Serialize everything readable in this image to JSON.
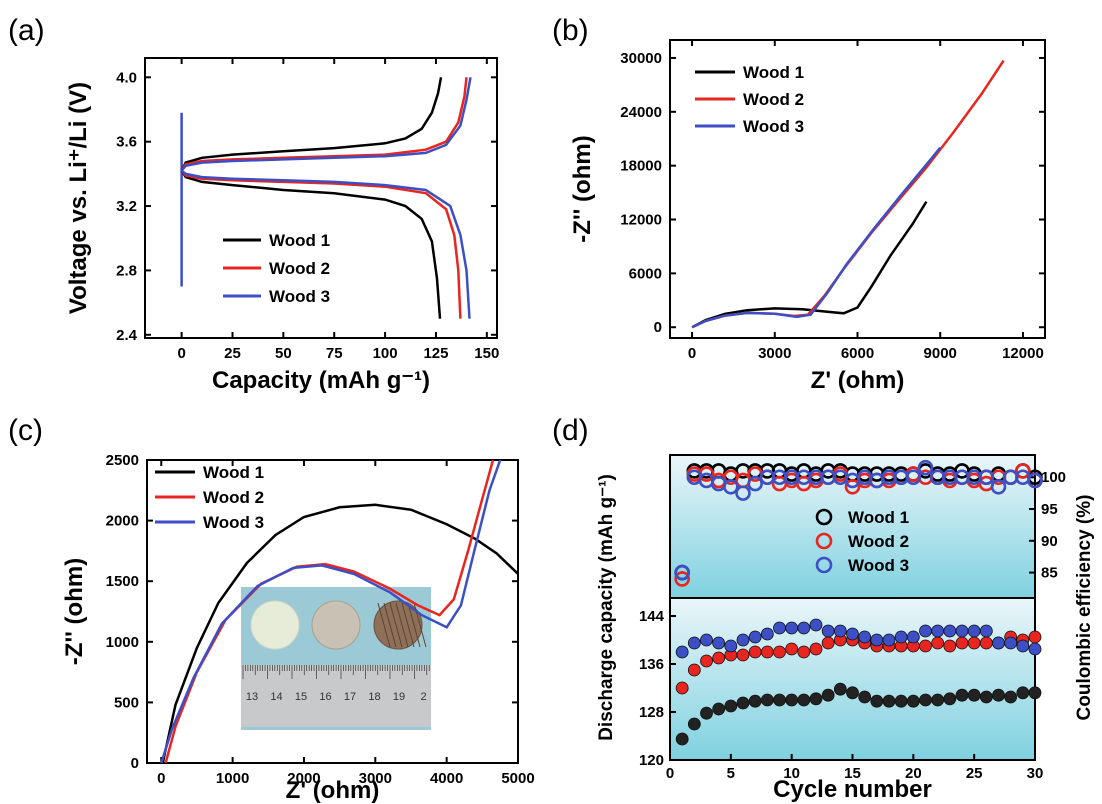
{
  "colors": {
    "wood1": "#000000",
    "wood2": "#e8251f",
    "wood3": "#3d4fc4",
    "panel_bg": "#7fd1e0"
  },
  "chart_data": [
    {
      "id": "a",
      "panel_label": "(a)",
      "type": "line",
      "xlabel": "Capacity (mAh g⁻¹)",
      "ylabel": "Voltage vs. Li⁺/Li (V)",
      "xlim": [
        -18,
        155
      ],
      "ylim": [
        2.38,
        4.12
      ],
      "xticks": [
        0,
        25,
        50,
        75,
        100,
        125,
        150
      ],
      "yticks": [
        2.4,
        2.8,
        3.2,
        3.6,
        4.0
      ],
      "ytick_labels": [
        "2.4",
        "2.8",
        "3.2",
        "3.6",
        "4.0"
      ],
      "legend": [
        "Wood 1",
        "Wood 2",
        "Wood 3"
      ],
      "legend_position": "bottom-left",
      "series": [
        {
          "name": "Wood 1",
          "charge": [
            [
              0,
              3.42
            ],
            [
              2,
              3.47
            ],
            [
              10,
              3.5
            ],
            [
              25,
              3.52
            ],
            [
              50,
              3.54
            ],
            [
              75,
              3.56
            ],
            [
              100,
              3.59
            ],
            [
              110,
              3.62
            ],
            [
              118,
              3.68
            ],
            [
              123,
              3.78
            ],
            [
              126,
              3.9
            ],
            [
              127.5,
              4.0
            ]
          ],
          "discharge": [
            [
              0,
              3.42
            ],
            [
              2,
              3.38
            ],
            [
              10,
              3.35
            ],
            [
              25,
              3.33
            ],
            [
              50,
              3.3
            ],
            [
              75,
              3.28
            ],
            [
              100,
              3.24
            ],
            [
              110,
              3.2
            ],
            [
              118,
              3.12
            ],
            [
              123,
              2.98
            ],
            [
              125.5,
              2.75
            ],
            [
              127,
              2.5
            ]
          ]
        },
        {
          "name": "Wood 2",
          "charge": [
            [
              0,
              3.42
            ],
            [
              2,
              3.46
            ],
            [
              10,
              3.48
            ],
            [
              25,
              3.49
            ],
            [
              50,
              3.5
            ],
            [
              75,
              3.51
            ],
            [
              100,
              3.52
            ],
            [
              120,
              3.55
            ],
            [
              130,
              3.6
            ],
            [
              136,
              3.72
            ],
            [
              139,
              3.88
            ],
            [
              140,
              4.0
            ]
          ],
          "discharge": [
            [
              0,
              3.42
            ],
            [
              2,
              3.39
            ],
            [
              10,
              3.37
            ],
            [
              25,
              3.36
            ],
            [
              50,
              3.35
            ],
            [
              75,
              3.34
            ],
            [
              100,
              3.32
            ],
            [
              120,
              3.28
            ],
            [
              130,
              3.18
            ],
            [
              134,
              3.02
            ],
            [
              136,
              2.8
            ],
            [
              137,
              2.5
            ]
          ]
        },
        {
          "name": "Wood 3",
          "charge": [
            [
              0,
              3.42
            ],
            [
              2,
              3.45
            ],
            [
              10,
              3.47
            ],
            [
              25,
              3.48
            ],
            [
              50,
              3.49
            ],
            [
              75,
              3.5
            ],
            [
              100,
              3.51
            ],
            [
              120,
              3.53
            ],
            [
              130,
              3.58
            ],
            [
              137,
              3.7
            ],
            [
              140,
              3.86
            ],
            [
              142,
              4.0
            ]
          ],
          "discharge": [
            [
              0,
              3.42
            ],
            [
              2,
              3.4
            ],
            [
              10,
              3.38
            ],
            [
              25,
              3.37
            ],
            [
              50,
              3.36
            ],
            [
              75,
              3.35
            ],
            [
              100,
              3.33
            ],
            [
              120,
              3.3
            ],
            [
              132,
              3.2
            ],
            [
              137,
              3.02
            ],
            [
              140,
              2.8
            ],
            [
              141.5,
              2.5
            ]
          ]
        }
      ]
    },
    {
      "id": "b",
      "panel_label": "(b)",
      "type": "line",
      "xlabel": "Z' (ohm)",
      "ylabel": "-Z'' (ohm)",
      "xlim": [
        -800,
        12800
      ],
      "ylim": [
        -1200,
        32000
      ],
      "xticks": [
        0,
        3000,
        6000,
        9000,
        12000
      ],
      "yticks": [
        0,
        6000,
        12000,
        18000,
        24000,
        30000
      ],
      "legend": [
        "Wood 1",
        "Wood 2",
        "Wood 3"
      ],
      "legend_position": "top-left",
      "series": [
        {
          "name": "Wood 1",
          "points": [
            [
              0,
              0
            ],
            [
              500,
              800
            ],
            [
              1200,
              1500
            ],
            [
              2000,
              1900
            ],
            [
              3000,
              2100
            ],
            [
              4000,
              2000
            ],
            [
              5000,
              1700
            ],
            [
              5500,
              1550
            ],
            [
              6000,
              2200
            ],
            [
              6500,
              4500
            ],
            [
              7200,
              8000
            ],
            [
              8000,
              11500
            ],
            [
              8500,
              14000
            ]
          ]
        },
        {
          "name": "Wood 2",
          "points": [
            [
              0,
              0
            ],
            [
              500,
              700
            ],
            [
              1200,
              1300
            ],
            [
              2000,
              1600
            ],
            [
              3000,
              1500
            ],
            [
              3700,
              1250
            ],
            [
              4200,
              1400
            ],
            [
              4800,
              3500
            ],
            [
              5500,
              6500
            ],
            [
              6500,
              10500
            ],
            [
              7500,
              14200
            ],
            [
              8500,
              17800
            ],
            [
              9500,
              21800
            ],
            [
              10500,
              26000
            ],
            [
              11300,
              29700
            ]
          ]
        },
        {
          "name": "Wood 3",
          "points": [
            [
              0,
              0
            ],
            [
              500,
              700
            ],
            [
              1200,
              1300
            ],
            [
              2000,
              1600
            ],
            [
              3000,
              1500
            ],
            [
              3800,
              1150
            ],
            [
              4300,
              1400
            ],
            [
              4900,
              3800
            ],
            [
              5600,
              7000
            ],
            [
              6600,
              11000
            ],
            [
              7600,
              14800
            ],
            [
              8600,
              18500
            ],
            [
              9000,
              20000
            ]
          ]
        }
      ]
    },
    {
      "id": "c",
      "panel_label": "(c)",
      "type": "line",
      "xlabel": "Z' (ohm)",
      "ylabel": "-Z'' (ohm)",
      "xlim": [
        -200,
        5000
      ],
      "ylim": [
        0,
        2500
      ],
      "xticks": [
        0,
        1000,
        2000,
        3000,
        4000,
        5000
      ],
      "yticks": [
        0,
        500,
        1000,
        1500,
        2000,
        2500
      ],
      "legend": [
        "Wood 1",
        "Wood 2",
        "Wood 3"
      ],
      "legend_position": "top-left",
      "inset": {
        "ruler_numbers": [
          "13",
          "14",
          "15",
          "16",
          "17",
          "18",
          "19",
          "2"
        ]
      },
      "series": [
        {
          "name": "Wood 1",
          "points": [
            [
              20,
              0
            ],
            [
              200,
              480
            ],
            [
              500,
              950
            ],
            [
              800,
              1320
            ],
            [
              1200,
              1650
            ],
            [
              1600,
              1880
            ],
            [
              2000,
              2030
            ],
            [
              2500,
              2110
            ],
            [
              3000,
              2130
            ],
            [
              3500,
              2090
            ],
            [
              4000,
              1970
            ],
            [
              4400,
              1850
            ],
            [
              4700,
              1730
            ],
            [
              5000,
              1560
            ]
          ]
        },
        {
          "name": "Wood 2",
          "points": [
            [
              60,
              0
            ],
            [
              200,
              300
            ],
            [
              500,
              750
            ],
            [
              900,
              1180
            ],
            [
              1400,
              1480
            ],
            [
              1900,
              1620
            ],
            [
              2300,
              1640
            ],
            [
              2700,
              1580
            ],
            [
              3200,
              1440
            ],
            [
              3600,
              1300
            ],
            [
              3900,
              1220
            ],
            [
              4100,
              1350
            ],
            [
              4300,
              1750
            ],
            [
              4500,
              2180
            ],
            [
              4650,
              2500
            ]
          ]
        },
        {
          "name": "Wood 3",
          "points": [
            [
              0,
              0
            ],
            [
              150,
              280
            ],
            [
              450,
              700
            ],
            [
              850,
              1150
            ],
            [
              1350,
              1460
            ],
            [
              1850,
              1610
            ],
            [
              2250,
              1630
            ],
            [
              2700,
              1560
            ],
            [
              3200,
              1410
            ],
            [
              3650,
              1220
            ],
            [
              4000,
              1120
            ],
            [
              4200,
              1300
            ],
            [
              4400,
              1780
            ],
            [
              4600,
              2250
            ],
            [
              4750,
              2500
            ]
          ]
        }
      ]
    },
    {
      "id": "d",
      "panel_label": "(d)",
      "type": "scatter",
      "xlabel": "Cycle number",
      "ylabel": "Discharge capacity (mAh g⁻¹)",
      "y2label": "Coulombic efficiency (%)",
      "xlim": [
        0,
        30
      ],
      "xticks": [
        0,
        5,
        10,
        15,
        20,
        25,
        30
      ],
      "ylim": [
        120,
        146
      ],
      "yticks": [
        120,
        128,
        136,
        144
      ],
      "y2lim": [
        81,
        103.5
      ],
      "y2ticks": [
        85,
        90,
        95,
        100
      ],
      "legend": [
        "Wood 1",
        "Wood 2",
        "Wood 3"
      ],
      "legend_position": "center",
      "series": [
        {
          "name": "Wood 1",
          "capacity": [
            123.5,
            126,
            127.8,
            128.5,
            129,
            129.5,
            129.8,
            130,
            130,
            130,
            130,
            130.2,
            130.8,
            131.8,
            131.2,
            130.5,
            129.8,
            129.8,
            129.8,
            129.8,
            130,
            130,
            130.2,
            130.8,
            130.8,
            130.5,
            130.8,
            130.5,
            131.2,
            131.2
          ],
          "efficiency": [
            85,
            101,
            101,
            101,
            100.5,
            101,
            101,
            101,
            101,
            100.5,
            101,
            100.5,
            101,
            101,
            100.5,
            100.5,
            100.5,
            100.5,
            100.5,
            100.5,
            101,
            100.5,
            100.5,
            101,
            100.5,
            100,
            100.5,
            100,
            101,
            100
          ]
        },
        {
          "name": "Wood 2",
          "capacity": [
            132,
            135,
            136.5,
            137,
            137.5,
            137.5,
            138,
            138,
            138,
            138.5,
            138,
            138.5,
            139.5,
            140,
            140,
            139.5,
            139,
            139,
            139,
            139,
            139,
            139.5,
            139,
            139.5,
            139.5,
            139.5,
            139.5,
            140.5,
            140,
            140.5
          ],
          "efficiency": [
            84,
            100.5,
            100.5,
            99.5,
            100,
            99.5,
            100.5,
            100,
            99,
            99.5,
            99,
            99.5,
            100,
            100.5,
            98.5,
            99.5,
            99.5,
            99.5,
            100,
            100.5,
            100,
            100,
            99.5,
            100,
            99.5,
            99,
            100,
            100,
            101,
            99.5
          ]
        },
        {
          "name": "Wood 3",
          "capacity": [
            138,
            139.5,
            140,
            139.5,
            139,
            140,
            140.5,
            141,
            142,
            142,
            142,
            142.5,
            141.5,
            141.5,
            141,
            140.5,
            140,
            140,
            140.5,
            140.5,
            141.5,
            141.5,
            141.5,
            141.5,
            141.5,
            141.5,
            139.5,
            139.5,
            139,
            138.5
          ],
          "efficiency": [
            85,
            100,
            99.5,
            99,
            98.5,
            97.5,
            99,
            100,
            100,
            100,
            100,
            100,
            100,
            100,
            99.5,
            100,
            99.5,
            100,
            100,
            100,
            101.5,
            100,
            100,
            100,
            100,
            100,
            98.5,
            100,
            100,
            99.5
          ]
        }
      ]
    }
  ]
}
